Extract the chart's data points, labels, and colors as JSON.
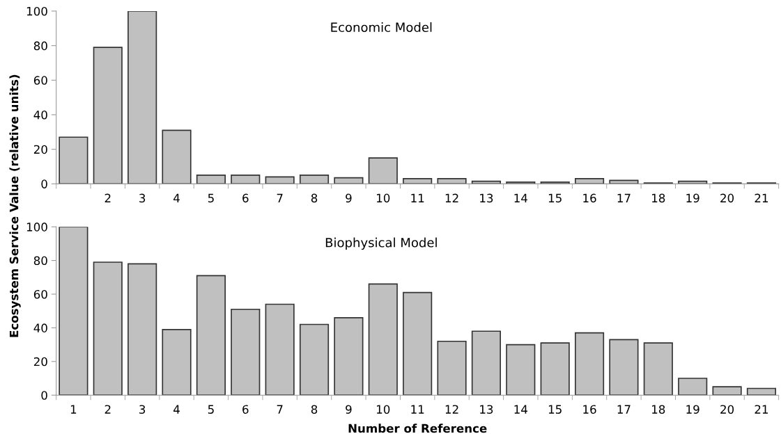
{
  "chart_data": [
    {
      "type": "bar",
      "title": "Economic Model",
      "ylabel": "Ecosystem Service Value (relative units)",
      "color": "#c0c0c0",
      "categories": [
        null,
        "2",
        "3",
        "4",
        "5",
        "6",
        "7",
        "8",
        "9",
        "10",
        "11",
        "12",
        "13",
        "14",
        "15",
        "16",
        "17",
        "18",
        "19",
        "20",
        "21"
      ],
      "values": [
        27,
        79,
        100,
        31,
        5,
        5,
        4,
        5,
        3.5,
        15,
        3,
        3,
        1.5,
        1,
        1,
        3,
        2,
        0.5,
        1.5,
        0.5,
        0.5
      ],
      "ylim": [
        0,
        100
      ],
      "yticks": [
        0,
        20,
        40,
        60,
        80,
        100
      ],
      "grid": false,
      "legend": false
    },
    {
      "type": "bar",
      "title": "Biophysical Model",
      "xlabel": "Number of Reference",
      "color": "#c0c0c0",
      "categories": [
        "1",
        "2",
        "3",
        "4",
        "5",
        "6",
        "7",
        "8",
        "9",
        "10",
        "11",
        "12",
        "13",
        "14",
        "15",
        "16",
        "17",
        "18",
        "19",
        "20",
        "21"
      ],
      "values": [
        100,
        79,
        78,
        39,
        71,
        51,
        54,
        42,
        46,
        66,
        61,
        32,
        38,
        30,
        31,
        37,
        33,
        31,
        10,
        5,
        4
      ],
      "ylim": [
        0,
        100
      ],
      "yticks": [
        0,
        20,
        40,
        60,
        80,
        100
      ],
      "grid": false,
      "legend": false
    }
  ]
}
